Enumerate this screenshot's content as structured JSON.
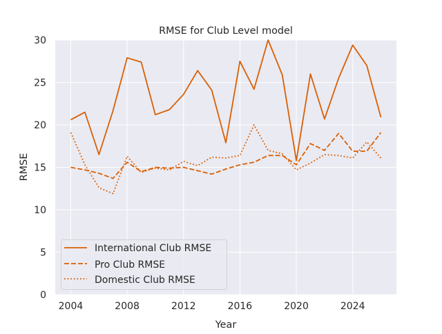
{
  "chart_data": {
    "type": "line",
    "title": "RMSE for Club Level model",
    "xlabel": "Year",
    "ylabel": "RMSE",
    "xlim": [
      2002.9,
      2027.1
    ],
    "ylim": [
      0,
      30
    ],
    "grid": true,
    "legend_position": "bottom-left",
    "x_ticks": [
      "2004",
      "2008",
      "2012",
      "2016",
      "2020",
      "2024"
    ],
    "x_tick_values": [
      2004,
      2008,
      2012,
      2016,
      2020,
      2024
    ],
    "y_ticks": [
      "0",
      "5",
      "10",
      "15",
      "20",
      "25",
      "30"
    ],
    "y_tick_values": [
      0,
      5,
      10,
      15,
      20,
      25,
      30
    ],
    "x": [
      2004,
      2005,
      2006,
      2007,
      2008,
      2009,
      2010,
      2011,
      2012,
      2013,
      2014,
      2015,
      2016,
      2017,
      2018,
      2019,
      2020,
      2021,
      2022,
      2023,
      2024,
      2025,
      2026
    ],
    "series": [
      {
        "name": "International Club RMSE",
        "style": "solid",
        "color": "#d95f02",
        "values": [
          20.6,
          21.5,
          16.5,
          21.7,
          27.9,
          27.4,
          21.2,
          21.8,
          23.6,
          26.4,
          24.1,
          17.9,
          27.5,
          24.2,
          30.0,
          25.9,
          15.8,
          26.0,
          20.7,
          25.5,
          29.4,
          27.0,
          20.9
        ]
      },
      {
        "name": "Pro Club RMSE",
        "style": "dashed",
        "color": "#d95f02",
        "values": [
          15.0,
          14.7,
          14.3,
          13.7,
          15.6,
          14.5,
          15.0,
          14.9,
          15.0,
          14.6,
          14.2,
          14.8,
          15.3,
          15.6,
          16.4,
          16.4,
          15.3,
          17.8,
          17.0,
          19.0,
          16.9,
          16.9,
          19.1
        ]
      },
      {
        "name": "Domestic Club RMSE",
        "style": "dotted",
        "color": "#d95f02",
        "values": [
          19.1,
          15.3,
          12.6,
          11.9,
          16.3,
          14.4,
          14.9,
          14.7,
          15.7,
          15.2,
          16.2,
          16.1,
          16.4,
          20.0,
          17.0,
          16.6,
          14.7,
          15.5,
          16.5,
          16.4,
          16.1,
          18.0,
          16.1
        ]
      }
    ]
  }
}
